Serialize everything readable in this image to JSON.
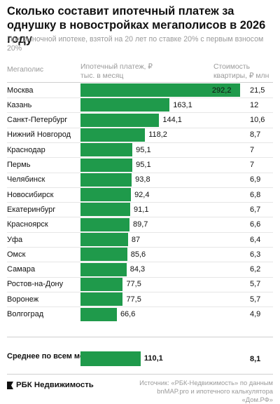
{
  "chart_data": {
    "type": "bar",
    "orientation": "horizontal",
    "title": "Сколько составит ипотечный платеж за однушку в новостройках мегаполисов в 2026 году",
    "subtitle": "При рыночной ипотеке, взятой на 20 лет по ставке 20% с первым взносом 20%",
    "column_headers": {
      "city": "Мегаполис",
      "payment": "Ипотечный платеж, ₽ тыс. в месяц",
      "price": "Стоимость квартиры, ₽ млн"
    },
    "categories": [
      "Москва",
      "Казань",
      "Санкт-Петербург",
      "Нижний Новгород",
      "Краснодар",
      "Пермь",
      "Челябинск",
      "Новосибирск",
      "Екатеринбург",
      "Красноярск",
      "Уфа",
      "Омск",
      "Самара",
      "Ростов-на-Дону",
      "Воронеж",
      "Волгоград"
    ],
    "series": [
      {
        "values": [
          292.2,
          163.1,
          144.1,
          118.2,
          95.1,
          95.1,
          93.8,
          92.4,
          91.1,
          89.7,
          87,
          85.6,
          84.3,
          77.5,
          77.5,
          66.6
        ]
      }
    ],
    "value_labels": [
      "292,2",
      "163,1",
      "144,1",
      "118,2",
      "95,1",
      "95,1",
      "93,8",
      "92,4",
      "91,1",
      "89,7",
      "87",
      "85,6",
      "84,3",
      "77,5",
      "77,5",
      "66,6"
    ],
    "prices": [
      "21,5",
      "12",
      "10,6",
      "8,7",
      "7",
      "7",
      "6,9",
      "6,8",
      "6,7",
      "6,6",
      "6,4",
      "6,3",
      "6,2",
      "5,7",
      "5,7",
      "4,9"
    ],
    "average": {
      "label": "Среднее по всем мегаполисам",
      "value": 110.1,
      "value_label": "110,1",
      "price": "8,1"
    },
    "xlim": [
      0,
      300
    ],
    "grid": false,
    "bar_color": "#1f9a4b"
  },
  "footer": {
    "brand": "РБК Недвижимость",
    "source": "Источник: «РБК-Недвижимость» по данным bnMAP.pro и ипотечного калькулятора «Дом.РФ»"
  }
}
